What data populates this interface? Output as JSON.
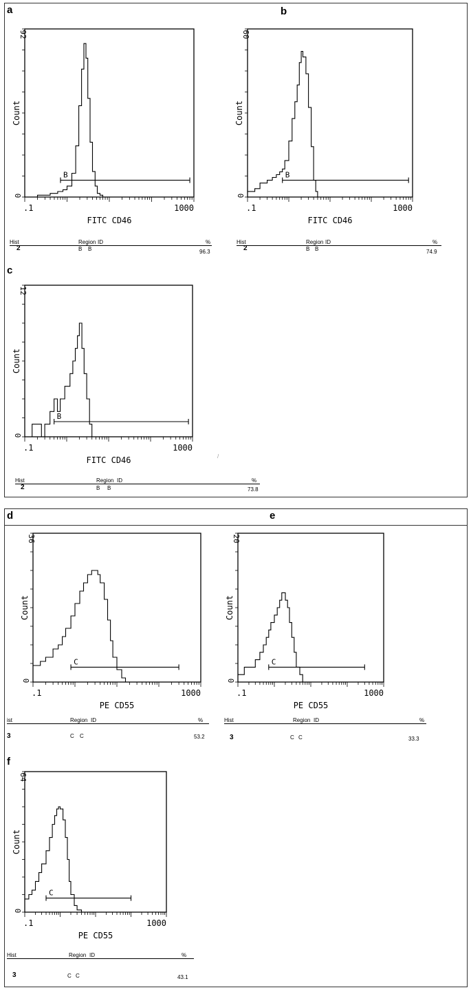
{
  "chart_data": [
    {
      "panel": "a",
      "type": "histogram",
      "xlabel": "FITC CD46",
      "ylabel": "Count",
      "xscale": "log",
      "xlim": [
        0.1,
        1000
      ],
      "ylim": [
        0,
        92
      ],
      "x_tick_labels": [
        ".1",
        "1000"
      ],
      "y_tick_labels": [
        "0",
        "92"
      ],
      "gate": {
        "label": "B",
        "from": 0.7,
        "to": 800
      },
      "series_x": [
        0.1,
        0.2,
        0.3,
        0.4,
        0.5,
        0.6,
        0.7,
        0.8,
        1.0,
        1.3,
        1.6,
        1.9,
        2.2,
        2.5,
        2.8,
        3.1,
        3.5,
        4.0,
        4.6,
        5.2,
        6.0,
        7.0,
        8.0,
        9.0,
        10,
        20,
        1000
      ],
      "series_y": [
        0,
        1,
        1,
        2,
        2,
        3,
        3,
        4,
        6,
        13,
        28,
        50,
        70,
        84,
        76,
        54,
        30,
        14,
        6,
        2,
        1,
        0,
        0,
        0,
        0,
        0,
        0
      ],
      "table": {
        "headers": [
          "Hist",
          "Region",
          "ID",
          "%"
        ],
        "hist": "2",
        "region": "B",
        "id": "B",
        "percent": "96.3"
      }
    },
    {
      "panel": "b",
      "type": "histogram",
      "xlabel": "FITC CD46",
      "ylabel": "Count",
      "xscale": "log",
      "xlim": [
        0.1,
        1000
      ],
      "ylim": [
        0,
        60
      ],
      "x_tick_labels": [
        ".1",
        "1000"
      ],
      "y_tick_labels": [
        "0",
        "60"
      ],
      "gate": {
        "label": "B",
        "from": 0.7,
        "to": 800
      },
      "series_x": [
        0.1,
        0.15,
        0.2,
        0.3,
        0.4,
        0.5,
        0.6,
        0.7,
        0.8,
        1.0,
        1.2,
        1.4,
        1.6,
        1.8,
        2.0,
        2.2,
        2.6,
        3.0,
        3.5,
        4.0,
        4.5,
        5.0,
        6.0,
        7.0,
        10,
        1000
      ],
      "series_y": [
        2,
        3,
        5,
        6,
        7,
        8,
        9,
        10,
        13,
        20,
        28,
        34,
        40,
        48,
        52,
        50,
        44,
        32,
        18,
        6,
        2,
        0,
        0,
        0,
        0,
        0
      ],
      "table": {
        "headers": [
          "Hist",
          "Region",
          "ID",
          "%"
        ],
        "hist": "2",
        "region": "B",
        "id": "B",
        "percent": "74.9"
      }
    },
    {
      "panel": "c",
      "type": "histogram",
      "xlabel": "FITC CD46",
      "ylabel": "Count",
      "xscale": "log",
      "xlim": [
        0.1,
        1000
      ],
      "ylim": [
        0,
        12
      ],
      "x_tick_labels": [
        ".1",
        "1000"
      ],
      "y_tick_labels": [
        "0",
        "12"
      ],
      "gate": {
        "label": "B",
        "from": 0.5,
        "to": 800
      },
      "series_x": [
        0.1,
        0.15,
        0.2,
        0.25,
        0.3,
        0.4,
        0.5,
        0.6,
        0.7,
        0.8,
        0.9,
        1.0,
        1.2,
        1.4,
        1.6,
        1.8,
        2.0,
        2.3,
        2.6,
        3.0,
        3.5,
        4.0,
        5.0,
        7.0,
        1000
      ],
      "series_y": [
        0,
        1,
        1,
        0,
        1,
        2,
        3,
        2,
        3,
        3,
        4,
        4,
        5,
        6,
        7,
        8,
        9,
        7,
        5,
        3,
        1,
        0,
        0,
        0,
        0
      ],
      "table": {
        "headers": [
          "Hist",
          "Region",
          "ID",
          "%"
        ],
        "hist": "2",
        "region": "B",
        "id": "B",
        "percent": "73.8"
      }
    },
    {
      "panel": "d",
      "type": "histogram",
      "xlabel": "PE CD55",
      "ylabel": "Count",
      "xscale": "log",
      "xlim": [
        0.1,
        1000
      ],
      "ylim": [
        0,
        36
      ],
      "x_tick_labels": [
        ".1",
        "1000"
      ],
      "y_tick_labels": [
        "0",
        "36"
      ],
      "gate": {
        "label": "C",
        "from": 0.8,
        "to": 300
      },
      "series_x": [
        0.1,
        0.15,
        0.2,
        0.3,
        0.4,
        0.5,
        0.6,
        0.8,
        1.0,
        1.3,
        1.6,
        2.0,
        2.5,
        3.0,
        3.5,
        4.0,
        5.0,
        6.0,
        7.0,
        8.0,
        10,
        13,
        16,
        20,
        25,
        1000
      ],
      "series_y": [
        4,
        5,
        6,
        8,
        9,
        11,
        13,
        16,
        19,
        22,
        24,
        26,
        27,
        27,
        26,
        24,
        20,
        15,
        10,
        6,
        3,
        1,
        0,
        0,
        0,
        0
      ],
      "table": {
        "headers": [
          "ist",
          "Region",
          "ID",
          "%"
        ],
        "hist": "3",
        "region": "C",
        "id": "C",
        "percent": "53.2"
      }
    },
    {
      "panel": "e",
      "type": "histogram",
      "xlabel": "PE CD55",
      "ylabel": "Count",
      "xscale": "log",
      "xlim": [
        0.1,
        1000
      ],
      "ylim": [
        0,
        20
      ],
      "x_tick_labels": [
        ".1",
        "1000"
      ],
      "y_tick_labels": [
        "0",
        "20"
      ],
      "gate": {
        "label": "C",
        "from": 0.7,
        "to": 300
      },
      "series_x": [
        0.1,
        0.15,
        0.2,
        0.3,
        0.4,
        0.5,
        0.6,
        0.7,
        0.8,
        1.0,
        1.2,
        1.4,
        1.6,
        1.8,
        2.0,
        2.3,
        2.6,
        3.0,
        3.5,
        4.0,
        5.0,
        6.0,
        7.0,
        10,
        1000
      ],
      "series_y": [
        1,
        2,
        2,
        3,
        4,
        5,
        6,
        7,
        8,
        9,
        10,
        11,
        12,
        12,
        11,
        10,
        8,
        6,
        4,
        2,
        1,
        0,
        0,
        0,
        0
      ],
      "table": {
        "headers": [
          "Hist",
          "Region",
          "ID",
          "%"
        ],
        "hist": "3",
        "region": "C",
        "id": "C",
        "percent": "33.3"
      }
    },
    {
      "panel": "f",
      "type": "histogram",
      "xlabel": "PE CD55",
      "ylabel": "Count",
      "xscale": "log",
      "xlim": [
        0.1,
        1000
      ],
      "ylim": [
        0,
        64
      ],
      "x_tick_labels": [
        ".1",
        "1000"
      ],
      "y_tick_labels": [
        "0",
        "64"
      ],
      "gate": {
        "label": "C",
        "from": 0.4,
        "to": 100
      },
      "series_x": [
        0.1,
        0.13,
        0.16,
        0.2,
        0.25,
        0.3,
        0.4,
        0.5,
        0.6,
        0.7,
        0.8,
        0.9,
        1.0,
        1.2,
        1.4,
        1.6,
        1.8,
        2.0,
        2.5,
        3.0,
        4.0,
        5.0,
        10,
        1000
      ],
      "series_y": [
        6,
        8,
        10,
        14,
        18,
        22,
        28,
        34,
        40,
        44,
        47,
        48,
        47,
        42,
        34,
        24,
        14,
        8,
        3,
        1,
        0,
        0,
        0,
        0
      ],
      "table": {
        "headers": [
          "Hist",
          "Region",
          "ID",
          "%"
        ],
        "hist": "3",
        "region": "C",
        "id": "C",
        "percent": "43.1"
      }
    }
  ],
  "panel_letters": [
    "a",
    "b",
    "c",
    "d",
    "e",
    "f"
  ],
  "stray_mark": "/"
}
